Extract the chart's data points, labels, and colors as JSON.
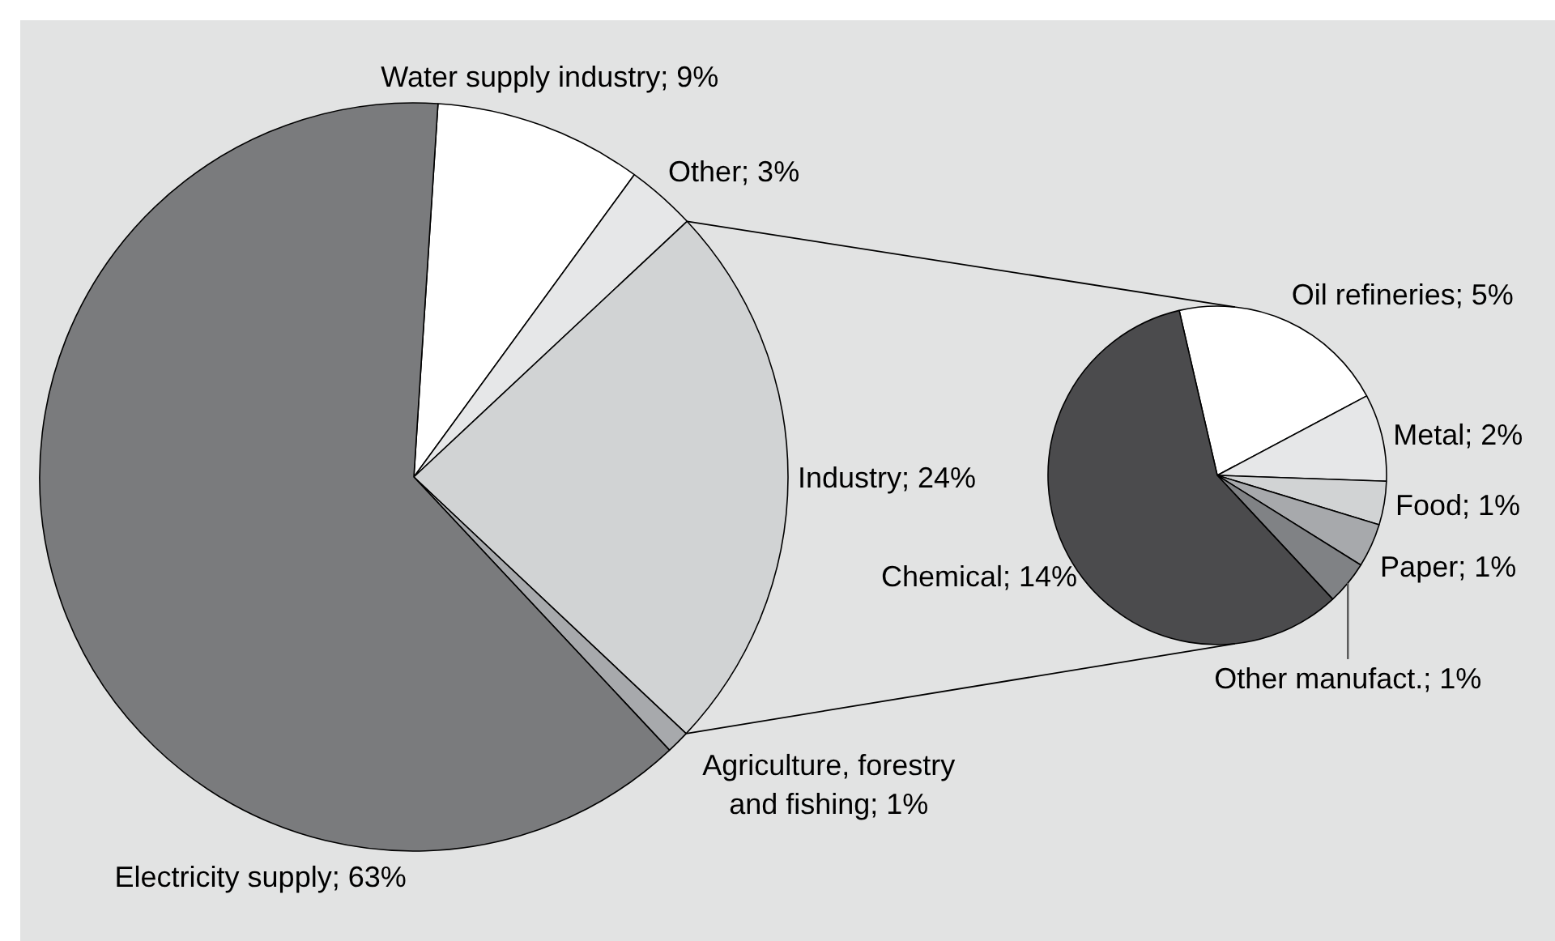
{
  "chart_data": [
    {
      "type": "pie",
      "categories": [
        "Water supply industry",
        "Other",
        "Industry",
        "Agriculture, forestry\nand fishing",
        "Electricity supply"
      ],
      "values": [
        9,
        3,
        24,
        1,
        63
      ],
      "value_labels": [
        "9%",
        "3%",
        "24%",
        "1%",
        "63%"
      ],
      "colors": [
        "#ffffff",
        "#e6e7e8",
        "#d1d3d4",
        "#a7a9ac",
        "#7a7b7d"
      ]
    },
    {
      "type": "pie",
      "categories": [
        "Oil refineries",
        "Metal",
        "Food",
        "Paper",
        "Other manufact.",
        "Chemical"
      ],
      "values": [
        5,
        2,
        1,
        1,
        1,
        14
      ],
      "value_labels": [
        "5%",
        "2%",
        "1%",
        "1%",
        "1%",
        "14%"
      ],
      "colors": [
        "#ffffff",
        "#e6e7e8",
        "#d1d3d4",
        "#a7a9ac",
        "#808285",
        "#4b4b4d"
      ]
    }
  ]
}
